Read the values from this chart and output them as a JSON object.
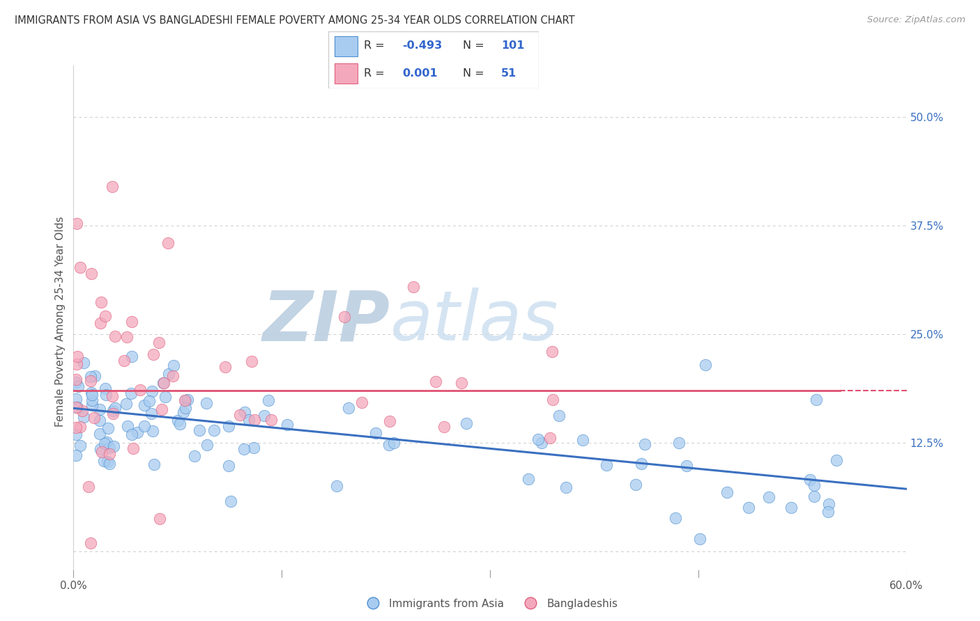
{
  "title": "IMMIGRANTS FROM ASIA VS BANGLADESHI FEMALE POVERTY AMONG 25-34 YEAR OLDS CORRELATION CHART",
  "source": "Source: ZipAtlas.com",
  "ylabel": "Female Poverty Among 25-34 Year Olds",
  "xlim": [
    0.0,
    0.6
  ],
  "ylim": [
    -0.03,
    0.56
  ],
  "color_blue": "#A8CCF0",
  "color_pink": "#F4A8BC",
  "edge_blue": "#5090D0",
  "edge_pink": "#E06080",
  "trend_blue": "#3A70C0",
  "trend_pink": "#E05070",
  "watermark_zip": "#C8D8E8",
  "watermark_atlas": "#D8E8F4",
  "grid_color": "#CCCCCC",
  "blue_intercept": 0.165,
  "blue_slope": -0.155,
  "pink_mean": 0.185,
  "legend_text_color": "#3366CC",
  "legend_label_color": "#333333"
}
